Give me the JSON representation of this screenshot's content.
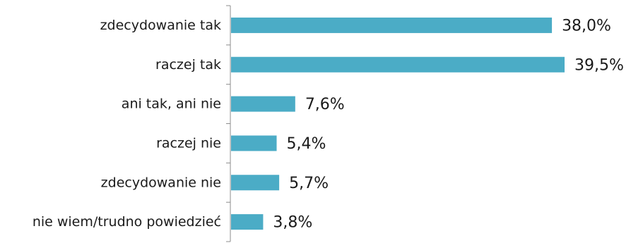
{
  "chart_data": {
    "type": "bar",
    "orientation": "horizontal",
    "categories": [
      "zdecydowanie tak",
      "raczej tak",
      "ani tak, ani nie",
      "raczej nie",
      "zdecydowanie nie",
      "nie wiem/trudno powiedzieć"
    ],
    "values": [
      38.0,
      39.5,
      7.6,
      5.4,
      5.7,
      3.8
    ],
    "value_labels": [
      "38,0%",
      "39,5%",
      "7,6%",
      "5,4%",
      "5,7%",
      "3,8%"
    ],
    "title": "",
    "xlabel": "",
    "ylabel": "",
    "xlim": [
      0,
      40
    ],
    "grid": false,
    "legend": "none",
    "bar_color": "#4bacc6"
  }
}
